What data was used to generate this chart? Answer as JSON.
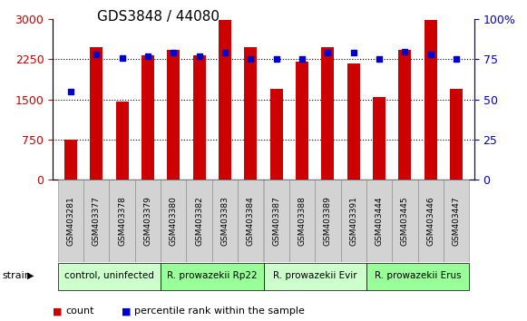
{
  "title": "GDS3848 / 44080",
  "samples": [
    "GSM403281",
    "GSM403377",
    "GSM403378",
    "GSM403379",
    "GSM403380",
    "GSM403382",
    "GSM403383",
    "GSM403384",
    "GSM403387",
    "GSM403388",
    "GSM403389",
    "GSM403391",
    "GSM403444",
    "GSM403445",
    "GSM403446",
    "GSM403447"
  ],
  "counts": [
    750,
    2480,
    1470,
    2320,
    2430,
    2320,
    2990,
    2480,
    1700,
    2200,
    2480,
    2180,
    1550,
    2430,
    2990,
    1700
  ],
  "percentiles": [
    55,
    78,
    76,
    77,
    79,
    77,
    79,
    75,
    75,
    75,
    79,
    79,
    75,
    80,
    78,
    75
  ],
  "bar_color": "#CC0000",
  "dot_color": "#0000CC",
  "left_yticks": [
    0,
    750,
    1500,
    2250,
    3000
  ],
  "right_yticks": [
    0,
    25,
    50,
    75,
    100
  ],
  "left_ylim": [
    0,
    3000
  ],
  "right_ylim": [
    0,
    100
  ],
  "left_tick_color": "#CC0000",
  "right_tick_color": "#0000CC",
  "groups": [
    {
      "label": "control, uninfected",
      "start": 0,
      "end": 4,
      "color": "#ccffcc"
    },
    {
      "label": "R. prowazekii Rp22",
      "start": 4,
      "end": 8,
      "color": "#99ff99"
    },
    {
      "label": "R. prowazekii Evir",
      "start": 8,
      "end": 12,
      "color": "#ccffcc"
    },
    {
      "label": "R. prowazekii Erus",
      "start": 12,
      "end": 16,
      "color": "#99ff99"
    }
  ],
  "legend_count_color": "#CC0000",
  "legend_pct_color": "#0000CC",
  "background_color": "#ffffff",
  "plot_bg_color": "#ffffff"
}
